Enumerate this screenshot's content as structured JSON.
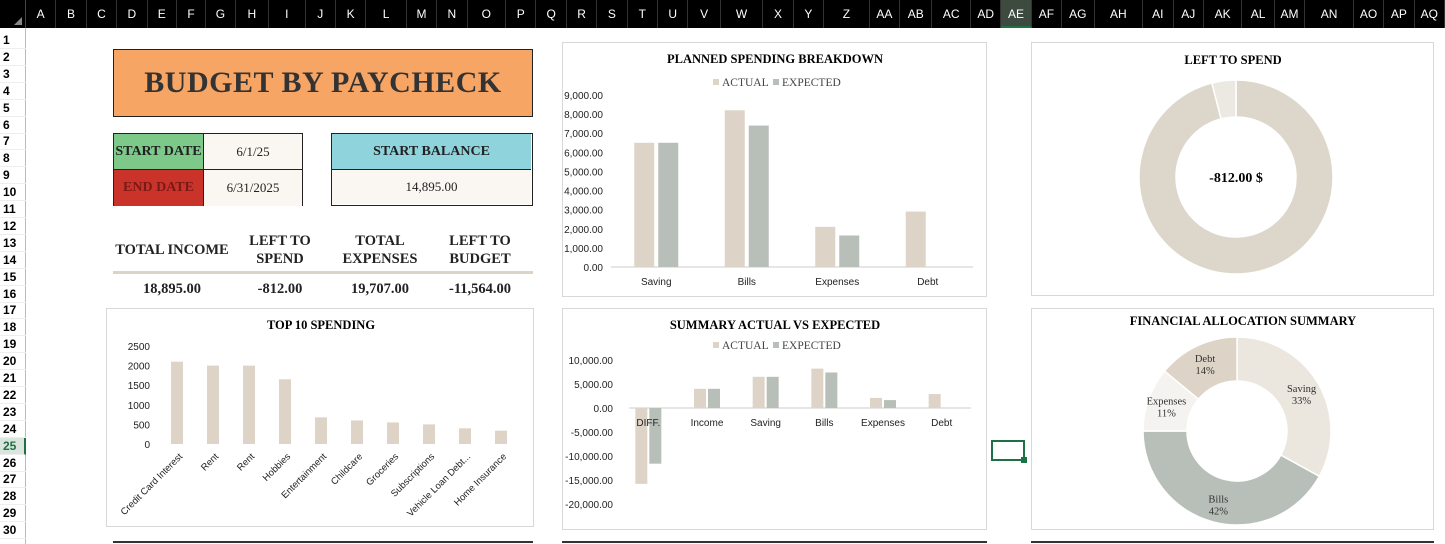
{
  "columns": [
    "A",
    "B",
    "C",
    "D",
    "E",
    "F",
    "G",
    "H",
    "I",
    "J",
    "K",
    "L",
    "M",
    "N",
    "O",
    "P",
    "Q",
    "R",
    "S",
    "T",
    "U",
    "V",
    "W",
    "X",
    "Y",
    "Z",
    "AA",
    "AB",
    "AC",
    "AD",
    "AE",
    "AF",
    "AG",
    "AH",
    "AI",
    "AJ",
    "AK",
    "AL",
    "AM",
    "AN",
    "AO",
    "AP",
    "AQ"
  ],
  "selected_column": "AE",
  "rows": [
    "1",
    "2",
    "3",
    "4",
    "5",
    "6",
    "7",
    "8",
    "9",
    "10",
    "11",
    "12",
    "13",
    "14",
    "15",
    "16",
    "17",
    "18",
    "19",
    "20",
    "21",
    "22",
    "23",
    "24",
    "25",
    "26",
    "27",
    "28",
    "29",
    "30"
  ],
  "selected_row": "25",
  "title": "BUDGET BY PAYCHECK",
  "colors": {
    "title_bg": "#f7a565",
    "start_date_bg": "#7cc98a",
    "end_date_bg": "#c9332a",
    "start_balance_bg": "#8fd4dc",
    "actual": "#ddd3c6",
    "expected": "#b8bfb8",
    "bills_slice": "#b8bfb8",
    "saving_slice": "#ebe6de",
    "expenses_slice": "#f5f3f0",
    "debt_slice": "#ddd3c6"
  },
  "dates": {
    "start_label": "START DATE",
    "start_value": "6/1/25",
    "end_label": "END DATE",
    "end_value": "6/31/2025"
  },
  "start_balance": {
    "label": "START BALANCE",
    "value": "14,895.00"
  },
  "stats": [
    {
      "label": "TOTAL INCOME",
      "value": "18,895.00"
    },
    {
      "label": "LEFT TO SPEND",
      "value": "-812.00"
    },
    {
      "label": "TOTAL EXPENSES",
      "value": "19,707.00"
    },
    {
      "label": "LEFT TO BUDGET",
      "value": "-11,564.00"
    }
  ],
  "chart_data": [
    {
      "id": "planned",
      "type": "bar",
      "title": "PLANNED SPENDING BREAKDOWN",
      "legend": [
        "ACTUAL",
        "EXPECTED"
      ],
      "legend_position": "top",
      "categories": [
        "Saving",
        "Bills",
        "Expenses",
        "Debt"
      ],
      "series": [
        {
          "name": "ACTUAL",
          "values": [
            6500,
            8200,
            2100,
            2900
          ]
        },
        {
          "name": "EXPECTED",
          "values": [
            6500,
            7400,
            1650,
            0
          ]
        }
      ],
      "ylim": [
        0,
        9000
      ],
      "yticks": [
        "0.00",
        "1,000.00",
        "2,000.00",
        "3,000.00",
        "4,000.00",
        "5,000.00",
        "6,000.00",
        "7,000.00",
        "8,000.00",
        "9,000.00"
      ]
    },
    {
      "id": "left_to_spend",
      "type": "pie",
      "title": "LEFT TO SPEND",
      "center_label": "-812.00  $",
      "values": [
        96,
        4
      ]
    },
    {
      "id": "top10",
      "type": "bar",
      "title": "TOP 10 SPENDING",
      "categories": [
        "Credit Card Interest",
        "Rent",
        "Rent",
        "Hobbies",
        "Entertainment",
        "Childcare",
        "Groceries",
        "Subscriptions",
        "Vehicle Loan Debt...",
        "Home Insurance"
      ],
      "values": [
        2100,
        2000,
        2000,
        1650,
        680,
        600,
        550,
        500,
        400,
        340
      ],
      "ylim": [
        0,
        2500
      ],
      "yticks": [
        "0",
        "500",
        "1000",
        "1500",
        "2000",
        "2500"
      ]
    },
    {
      "id": "summary",
      "type": "bar",
      "title": "SUMMARY ACTUAL VS EXPECTED",
      "legend": [
        "ACTUAL",
        "EXPECTED"
      ],
      "legend_position": "top",
      "categories": [
        "DIFF.",
        "Income",
        "Saving",
        "Bills",
        "Expenses",
        "Debt"
      ],
      "series": [
        {
          "name": "ACTUAL",
          "values": [
            -15800,
            4000,
            6500,
            8200,
            2100,
            2900
          ]
        },
        {
          "name": "EXPECTED",
          "values": [
            -11600,
            4000,
            6500,
            7400,
            1650,
            0
          ]
        }
      ],
      "ylim": [
        -20000,
        10000
      ],
      "yticks": [
        "-20,000.00",
        "-15,000.00",
        "-10,000.00",
        "-5,000.00",
        "0.00",
        "5,000.00",
        "10,000.00"
      ]
    },
    {
      "id": "allocation",
      "type": "pie",
      "title": "FINANCIAL ALLOCATION SUMMARY",
      "slices": [
        {
          "label": "Saving",
          "pct": "33%",
          "value": 33
        },
        {
          "label": "Bills",
          "pct": "42%",
          "value": 42
        },
        {
          "label": "Expenses",
          "pct": "11%",
          "value": 11
        },
        {
          "label": "Debt",
          "pct": "14%",
          "value": 14
        }
      ]
    }
  ]
}
